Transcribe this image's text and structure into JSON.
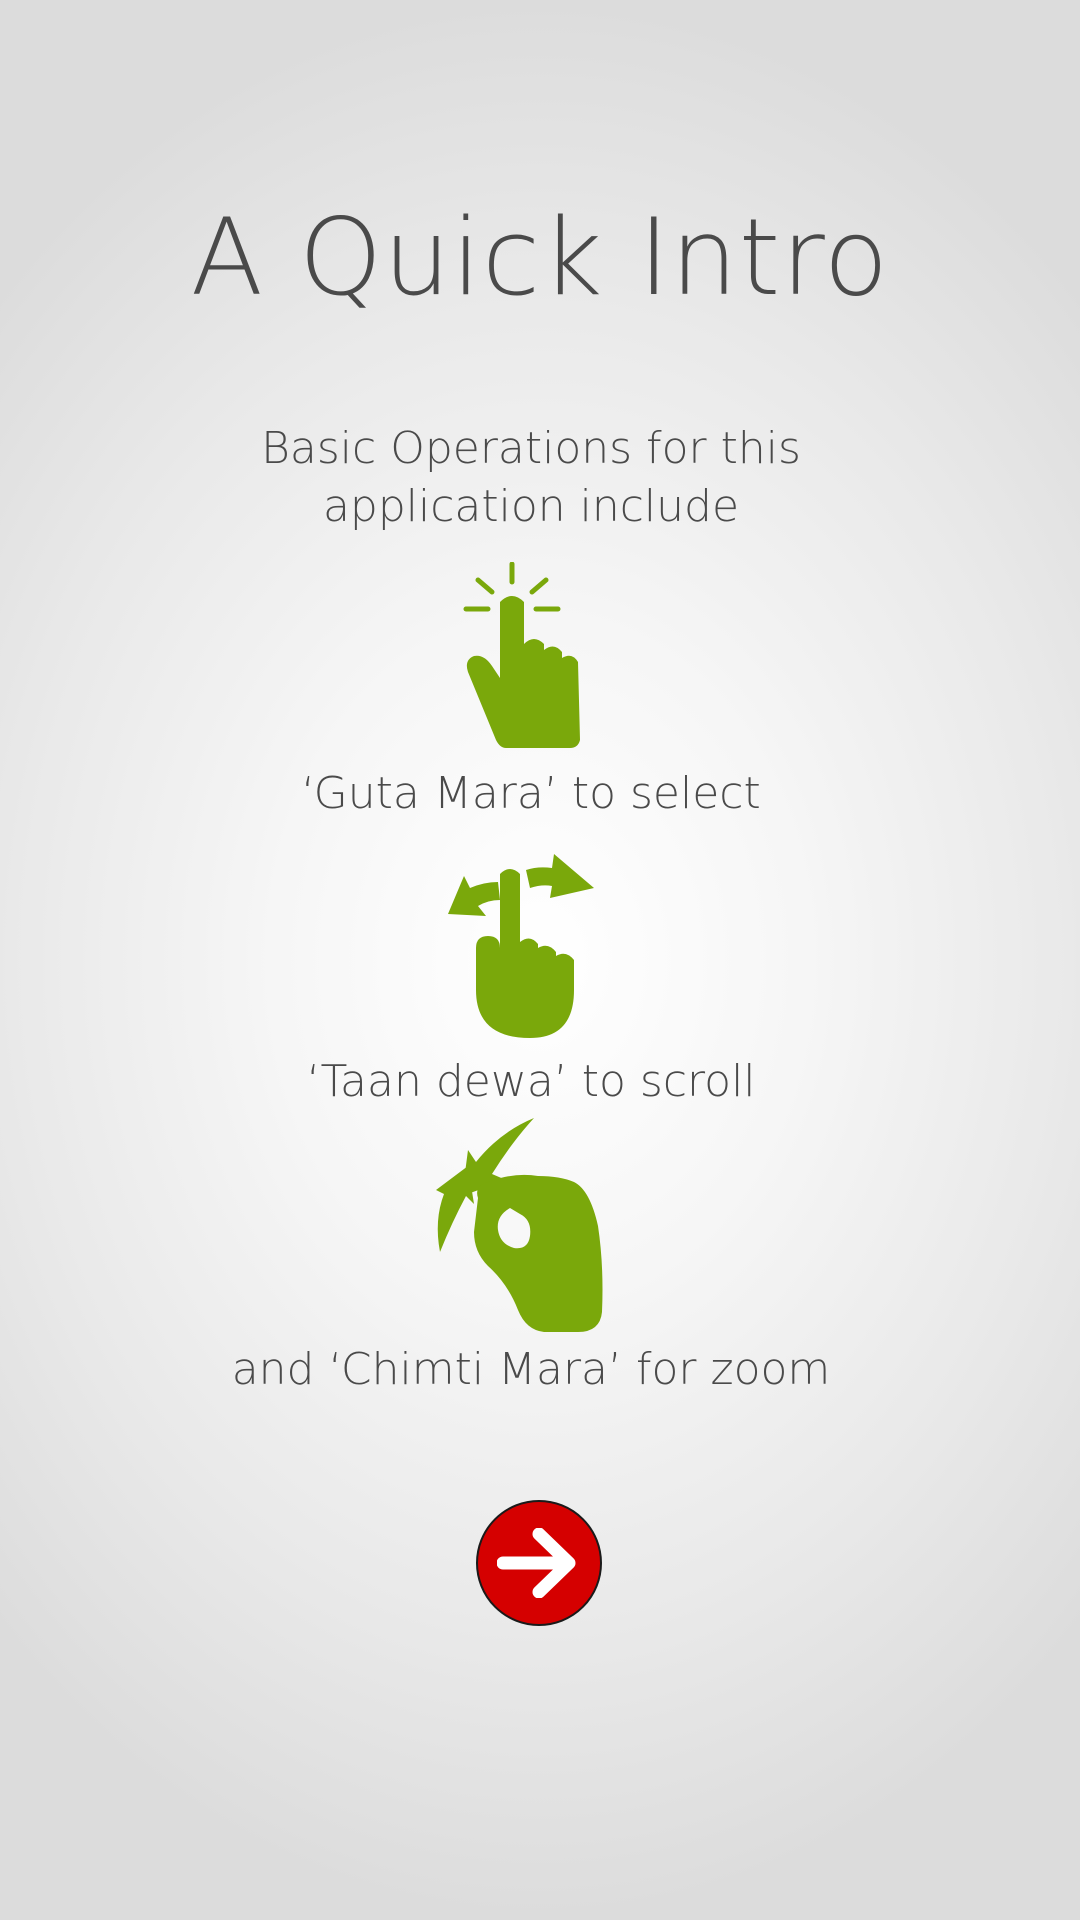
{
  "intro": {
    "title": "A Quick Intro",
    "subtitle_line1": "Basic Operations for this",
    "subtitle_line2": "application include"
  },
  "gestures": [
    {
      "label": "‘Guta Mara’ to select",
      "icon": "tap-gesture-icon"
    },
    {
      "label": "‘Taan dewa’ to scroll",
      "icon": "swipe-gesture-icon"
    },
    {
      "label": "and ‘Chimti Mara’ for zoom",
      "icon": "pinch-gesture-icon"
    }
  ],
  "next_button": {
    "icon": "arrow-right-icon"
  },
  "colors": {
    "accent_green": "#7aa80b",
    "button_red": "#d50000",
    "text_gray": "#4a4a4a"
  }
}
